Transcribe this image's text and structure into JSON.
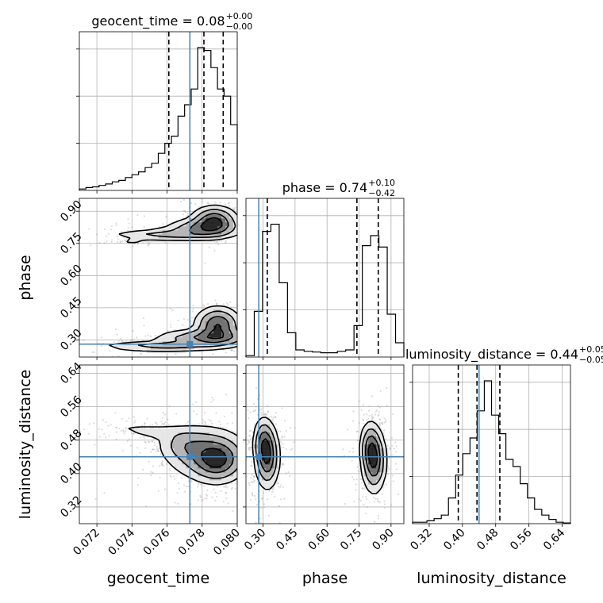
{
  "chart_data": {
    "type": "corner",
    "colors": {
      "truth": "#4682b4",
      "hist": "#000000",
      "quantile": "#000000",
      "grid": "#b0b0b0",
      "scatter": "#9a9a9a"
    },
    "parameters": [
      {
        "name": "geocent_time",
        "label": "geocent_time",
        "title": "geocent_time = 0.08",
        "err_up": "+0.00",
        "err_down": "−0.00",
        "range": [
          0.071,
          0.08
        ],
        "ticks": [
          0.072,
          0.074,
          0.076,
          0.078,
          0.08
        ],
        "tick_labels": [
          "0.072",
          "0.074",
          "0.076",
          "0.078",
          "0.080"
        ],
        "truth": 0.0773,
        "quantiles": [
          0.0761,
          0.0781,
          0.0792
        ],
        "hist": [
          0.01,
          0.02,
          0.025,
          0.035,
          0.045,
          0.06,
          0.07,
          0.09,
          0.11,
          0.13,
          0.16,
          0.19,
          0.26,
          0.33,
          0.38,
          0.52,
          0.6,
          0.71,
          1.0,
          0.98,
          0.86,
          0.71,
          0.66,
          0.46
        ]
      },
      {
        "name": "phase",
        "label": "phase",
        "title": "phase = 0.74",
        "err_up": "+0.10",
        "err_down": "−0.42",
        "range": [
          0.22,
          0.96
        ],
        "ticks": [
          0.3,
          0.45,
          0.6,
          0.75,
          0.9
        ],
        "tick_labels": [
          "0.30",
          "0.45",
          "0.60",
          "0.75",
          "0.90"
        ],
        "truth": 0.28,
        "quantiles": [
          0.32,
          0.74,
          0.84
        ],
        "hist": [
          0.01,
          0.32,
          0.88,
          0.93,
          0.52,
          0.17,
          0.05,
          0.04,
          0.035,
          0.03,
          0.03,
          0.04,
          0.05,
          0.22,
          0.78,
          0.85,
          0.77,
          0.3,
          0.1
        ]
      },
      {
        "name": "luminosity_distance",
        "label": "luminosity_distance",
        "title": "luminosity_distance = 0.44",
        "err_up": "+0.05",
        "err_down": "−0.05",
        "range": [
          0.28,
          0.66
        ],
        "ticks": [
          0.32,
          0.4,
          0.48,
          0.56,
          0.64
        ],
        "tick_labels": [
          "0.32",
          "0.40",
          "0.48",
          "0.56",
          "0.64"
        ],
        "truth": 0.44,
        "quantiles": [
          0.39,
          0.435,
          0.49
        ],
        "hist": [
          0.01,
          0.01,
          0.02,
          0.035,
          0.06,
          0.18,
          0.34,
          0.49,
          0.6,
          0.79,
          1.0,
          0.76,
          0.63,
          0.45,
          0.4,
          0.28,
          0.18,
          0.1,
          0.06,
          0.03,
          0.01,
          0.005
        ]
      }
    ],
    "contours": [
      {
        "x_param": "geocent_time",
        "y_param": "phase",
        "blobs": [
          {
            "center": [
              0.0789,
              0.37
            ],
            "spread": [
              0.0007,
              0.045
            ],
            "weight": 1.0
          },
          {
            "center": [
              0.0783,
              0.31
            ],
            "spread": [
              0.0016,
              0.022
            ],
            "weight": 0.7
          },
          {
            "center": [
              0.0757,
              0.27
            ],
            "spread": [
              0.002,
              0.013
            ],
            "weight": 0.5
          },
          {
            "center": [
              0.0787,
              0.86
            ],
            "spread": [
              0.0007,
              0.035
            ],
            "weight": 0.95
          },
          {
            "center": [
              0.0781,
              0.82
            ],
            "spread": [
              0.0012,
              0.025
            ],
            "weight": 0.7
          },
          {
            "center": [
              0.0759,
              0.79
            ],
            "spread": [
              0.0018,
              0.015
            ],
            "weight": 0.45
          },
          {
            "center": [
              0.074,
              0.76
            ],
            "spread": [
              0.0005,
              0.005
            ],
            "weight": 0.2
          }
        ]
      },
      {
        "x_param": "geocent_time",
        "y_param": "luminosity_distance",
        "blobs": [
          {
            "center": [
              0.0789,
              0.43
            ],
            "spread": [
              0.0008,
              0.028
            ],
            "weight": 1.0
          },
          {
            "center": [
              0.0782,
              0.45
            ],
            "spread": [
              0.0013,
              0.035
            ],
            "weight": 0.8
          },
          {
            "center": [
              0.077,
              0.47
            ],
            "spread": [
              0.0008,
              0.02
            ],
            "weight": 0.4
          },
          {
            "center": [
              0.0753,
              0.5
            ],
            "spread": [
              0.0013,
              0.012
            ],
            "weight": 0.25
          },
          {
            "center": [
              0.074,
              0.51
            ],
            "spread": [
              0.0008,
              0.006
            ],
            "weight": 0.1
          }
        ]
      },
      {
        "x_param": "phase",
        "y_param": "luminosity_distance",
        "blobs": [
          {
            "center": [
              0.32,
              0.44
            ],
            "spread": [
              0.03,
              0.04
            ],
            "weight": 1.0
          },
          {
            "center": [
              0.3,
              0.48
            ],
            "spread": [
              0.025,
              0.03
            ],
            "weight": 0.5
          },
          {
            "center": [
              0.82,
              0.43
            ],
            "spread": [
              0.03,
              0.04
            ],
            "weight": 1.0
          },
          {
            "center": [
              0.8,
              0.47
            ],
            "spread": [
              0.025,
              0.03
            ],
            "weight": 0.5
          }
        ]
      }
    ]
  }
}
